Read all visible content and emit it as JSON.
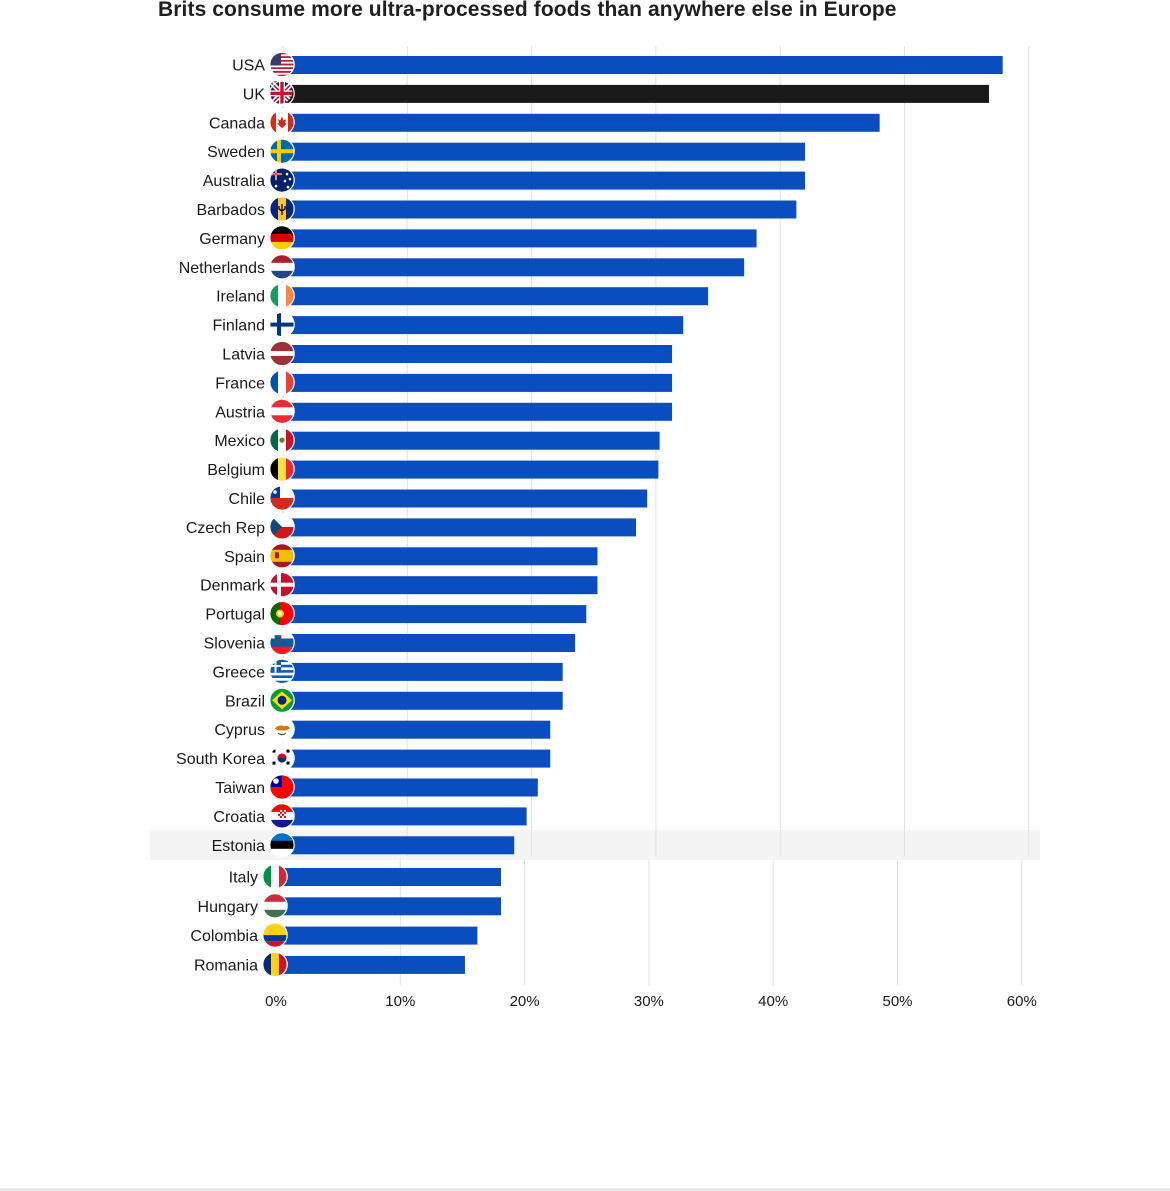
{
  "chart_data": {
    "type": "bar",
    "orientation": "horizontal",
    "title": "Brits consume more ultra-processed foods than anywhere else in Europe",
    "xlabel": "",
    "ylabel": "",
    "xlim": [
      0,
      60
    ],
    "x_ticks": [
      "0%",
      "10%",
      "20%",
      "30%",
      "40%",
      "50%",
      "60%"
    ],
    "grid": "vertical",
    "legend": "none",
    "colors": {
      "default_bar": "#0a4dbf",
      "highlight_bar": "#1a1a1a",
      "gridline": "#e2e2e2"
    },
    "highlight": "UK",
    "categories": [
      "USA",
      "UK",
      "Canada",
      "Sweden",
      "Australia",
      "Barbados",
      "Germany",
      "Netherlands",
      "Ireland",
      "Finland",
      "Latvia",
      "France",
      "Austria",
      "Mexico",
      "Belgium",
      "Chile",
      "Czech Rep",
      "Spain",
      "Denmark",
      "Portugal",
      "Slovenia",
      "Greece",
      "Brazil",
      "Cyprus",
      "South Korea",
      "Taiwan",
      "Croatia",
      "Estonia",
      "Italy",
      "Hungary",
      "Colombia",
      "Romania"
    ],
    "values": [
      57.9,
      56.8,
      48.0,
      42.0,
      42.0,
      41.3,
      38.1,
      37.1,
      34.2,
      32.2,
      31.3,
      31.3,
      31.3,
      30.3,
      30.2,
      29.3,
      28.4,
      25.3,
      25.3,
      24.4,
      23.5,
      22.5,
      22.5,
      21.5,
      21.5,
      20.5,
      19.6,
      18.6,
      18.1,
      18.1,
      16.2,
      15.2
    ],
    "flags": [
      "us-flag-icon",
      "uk-flag-icon",
      "canada-flag-icon",
      "sweden-flag-icon",
      "australia-flag-icon",
      "barbados-flag-icon",
      "germany-flag-icon",
      "netherlands-flag-icon",
      "ireland-flag-icon",
      "finland-flag-icon",
      "latvia-flag-icon",
      "france-flag-icon",
      "austria-flag-icon",
      "mexico-flag-icon",
      "belgium-flag-icon",
      "chile-flag-icon",
      "czech-flag-icon",
      "spain-flag-icon",
      "denmark-flag-icon",
      "portugal-flag-icon",
      "slovenia-flag-icon",
      "greece-flag-icon",
      "brazil-flag-icon",
      "cyprus-flag-icon",
      "south-korea-flag-icon",
      "taiwan-flag-icon",
      "croatia-flag-icon",
      "estonia-flag-icon",
      "italy-flag-icon",
      "hungary-flag-icon",
      "colombia-flag-icon",
      "romania-flag-icon"
    ]
  }
}
